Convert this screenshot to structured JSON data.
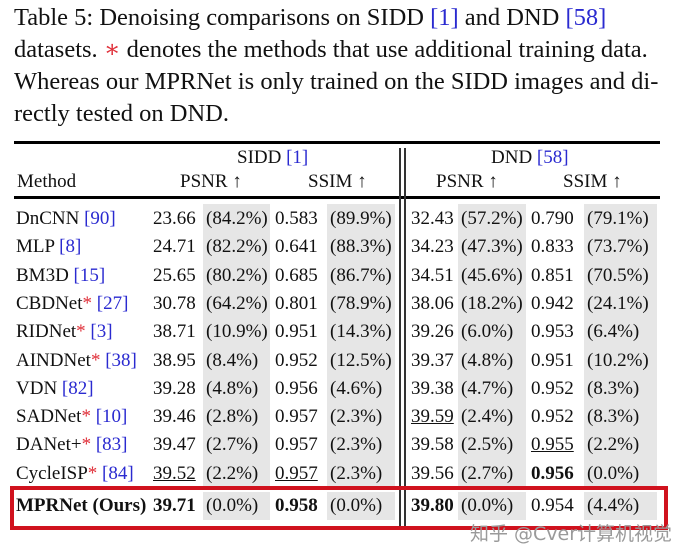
{
  "caption": {
    "line1_a": "Table 5:  Denoising comparisons on SIDD ",
    "line1_ref1": "[1]",
    "line1_b": " and DND ",
    "line1_ref2": "[58]",
    "line2_a": "datasets. ",
    "line2_star": "∗",
    "line2_b": " denotes the methods that use additional training data.",
    "line3": "Whereas our MPRNet is only trained on the SIDD images and di-",
    "line4": "rectly tested on DND."
  },
  "header": {
    "method": "Method",
    "sidd": "SIDD ",
    "sidd_ref": "[1]",
    "dnd": "DND ",
    "dnd_ref": "[58]",
    "psnr": "PSNR ↑",
    "ssim": "SSIM ↑"
  },
  "rows": [
    {
      "name": "DnCNN",
      "star": "",
      "ref": "[90]",
      "cells": [
        {
          "v": "23.66"
        },
        {
          "v": "(84.2%)"
        },
        {
          "v": "0.583"
        },
        {
          "v": "(89.9%)"
        },
        {
          "v": "32.43"
        },
        {
          "v": "(57.2%)"
        },
        {
          "v": "0.790"
        },
        {
          "v": "(79.1%)"
        }
      ]
    },
    {
      "name": "MLP",
      "star": "",
      "ref": "[8]",
      "cells": [
        {
          "v": "24.71"
        },
        {
          "v": "(82.2%)"
        },
        {
          "v": "0.641"
        },
        {
          "v": "(88.3%)"
        },
        {
          "v": "34.23"
        },
        {
          "v": "(47.3%)"
        },
        {
          "v": "0.833"
        },
        {
          "v": "(73.7%)"
        }
      ]
    },
    {
      "name": "BM3D",
      "star": "",
      "ref": "[15]",
      "cells": [
        {
          "v": "25.65"
        },
        {
          "v": "(80.2%)"
        },
        {
          "v": "0.685"
        },
        {
          "v": "(86.7%)"
        },
        {
          "v": "34.51"
        },
        {
          "v": "(45.6%)"
        },
        {
          "v": "0.851"
        },
        {
          "v": "(70.5%)"
        }
      ]
    },
    {
      "name": "CBDNet",
      "star": "*",
      "ref": "[27]",
      "cells": [
        {
          "v": "30.78"
        },
        {
          "v": "(64.2%)"
        },
        {
          "v": "0.801"
        },
        {
          "v": "(78.9%)"
        },
        {
          "v": "38.06"
        },
        {
          "v": "(18.2%)"
        },
        {
          "v": "0.942"
        },
        {
          "v": "(24.1%)"
        }
      ]
    },
    {
      "name": "RIDNet",
      "star": "*",
      "ref": "[3]",
      "cells": [
        {
          "v": "38.71"
        },
        {
          "v": "(10.9%)"
        },
        {
          "v": "0.951"
        },
        {
          "v": "(14.3%)"
        },
        {
          "v": "39.26"
        },
        {
          "v": "(6.0%)"
        },
        {
          "v": "0.953"
        },
        {
          "v": "(6.4%)"
        }
      ]
    },
    {
      "name": "AINDNet",
      "star": "*",
      "ref": "[38]",
      "cells": [
        {
          "v": "38.95"
        },
        {
          "v": "(8.4%)"
        },
        {
          "v": "0.952"
        },
        {
          "v": "(12.5%)"
        },
        {
          "v": "39.37"
        },
        {
          "v": "(4.8%)"
        },
        {
          "v": "0.951"
        },
        {
          "v": "(10.2%)"
        }
      ]
    },
    {
      "name": "VDN",
      "star": "",
      "ref": "[82]",
      "cells": [
        {
          "v": "39.28"
        },
        {
          "v": "(4.8%)"
        },
        {
          "v": "0.956"
        },
        {
          "v": "(4.6%)"
        },
        {
          "v": "39.38"
        },
        {
          "v": "(4.7%)"
        },
        {
          "v": "0.952"
        },
        {
          "v": "(8.3%)"
        }
      ]
    },
    {
      "name": "SADNet",
      "star": "*",
      "ref": "[10]",
      "cells": [
        {
          "v": "39.46"
        },
        {
          "v": "(2.8%)"
        },
        {
          "v": "0.957"
        },
        {
          "v": "(2.3%)"
        },
        {
          "v": "39.59",
          "u": true
        },
        {
          "v": "(2.4%)"
        },
        {
          "v": "0.952"
        },
        {
          "v": "(8.3%)"
        }
      ]
    },
    {
      "name": "DANet+",
      "star": "*",
      "ref": "[83]",
      "cells": [
        {
          "v": "39.47"
        },
        {
          "v": "(2.7%)"
        },
        {
          "v": "0.957"
        },
        {
          "v": "(2.3%)"
        },
        {
          "v": "39.58"
        },
        {
          "v": "(2.5%)"
        },
        {
          "v": "0.955",
          "u": true
        },
        {
          "v": "(2.2%)"
        }
      ]
    },
    {
      "name": "CycleISP",
      "star": "*",
      "ref": "[84]",
      "cells": [
        {
          "v": "39.52",
          "u": true
        },
        {
          "v": "(2.2%)"
        },
        {
          "v": "0.957",
          "u": true
        },
        {
          "v": "(2.3%)"
        },
        {
          "v": "39.56"
        },
        {
          "v": "(2.7%)"
        },
        {
          "v": "0.956",
          "b": true
        },
        {
          "v": "(0.0%)"
        }
      ]
    },
    {
      "name": "MPRNet (Ours)",
      "star": "",
      "ref": "",
      "bold": true,
      "cells": [
        {
          "v": "39.71",
          "b": true
        },
        {
          "v": "(0.0%)"
        },
        {
          "v": "0.958",
          "b": true
        },
        {
          "v": "(0.0%)"
        },
        {
          "v": "39.80",
          "b": true
        },
        {
          "v": "(0.0%)"
        },
        {
          "v": "0.954"
        },
        {
          "v": "(4.4%)"
        }
      ]
    }
  ],
  "watermark": "知乎 @Cver计算机视觉",
  "colors": {
    "ref": "#2a2ad0",
    "star": "#e0303a",
    "highlight_box": "#d0121e",
    "shade": "#e6e6e6"
  }
}
